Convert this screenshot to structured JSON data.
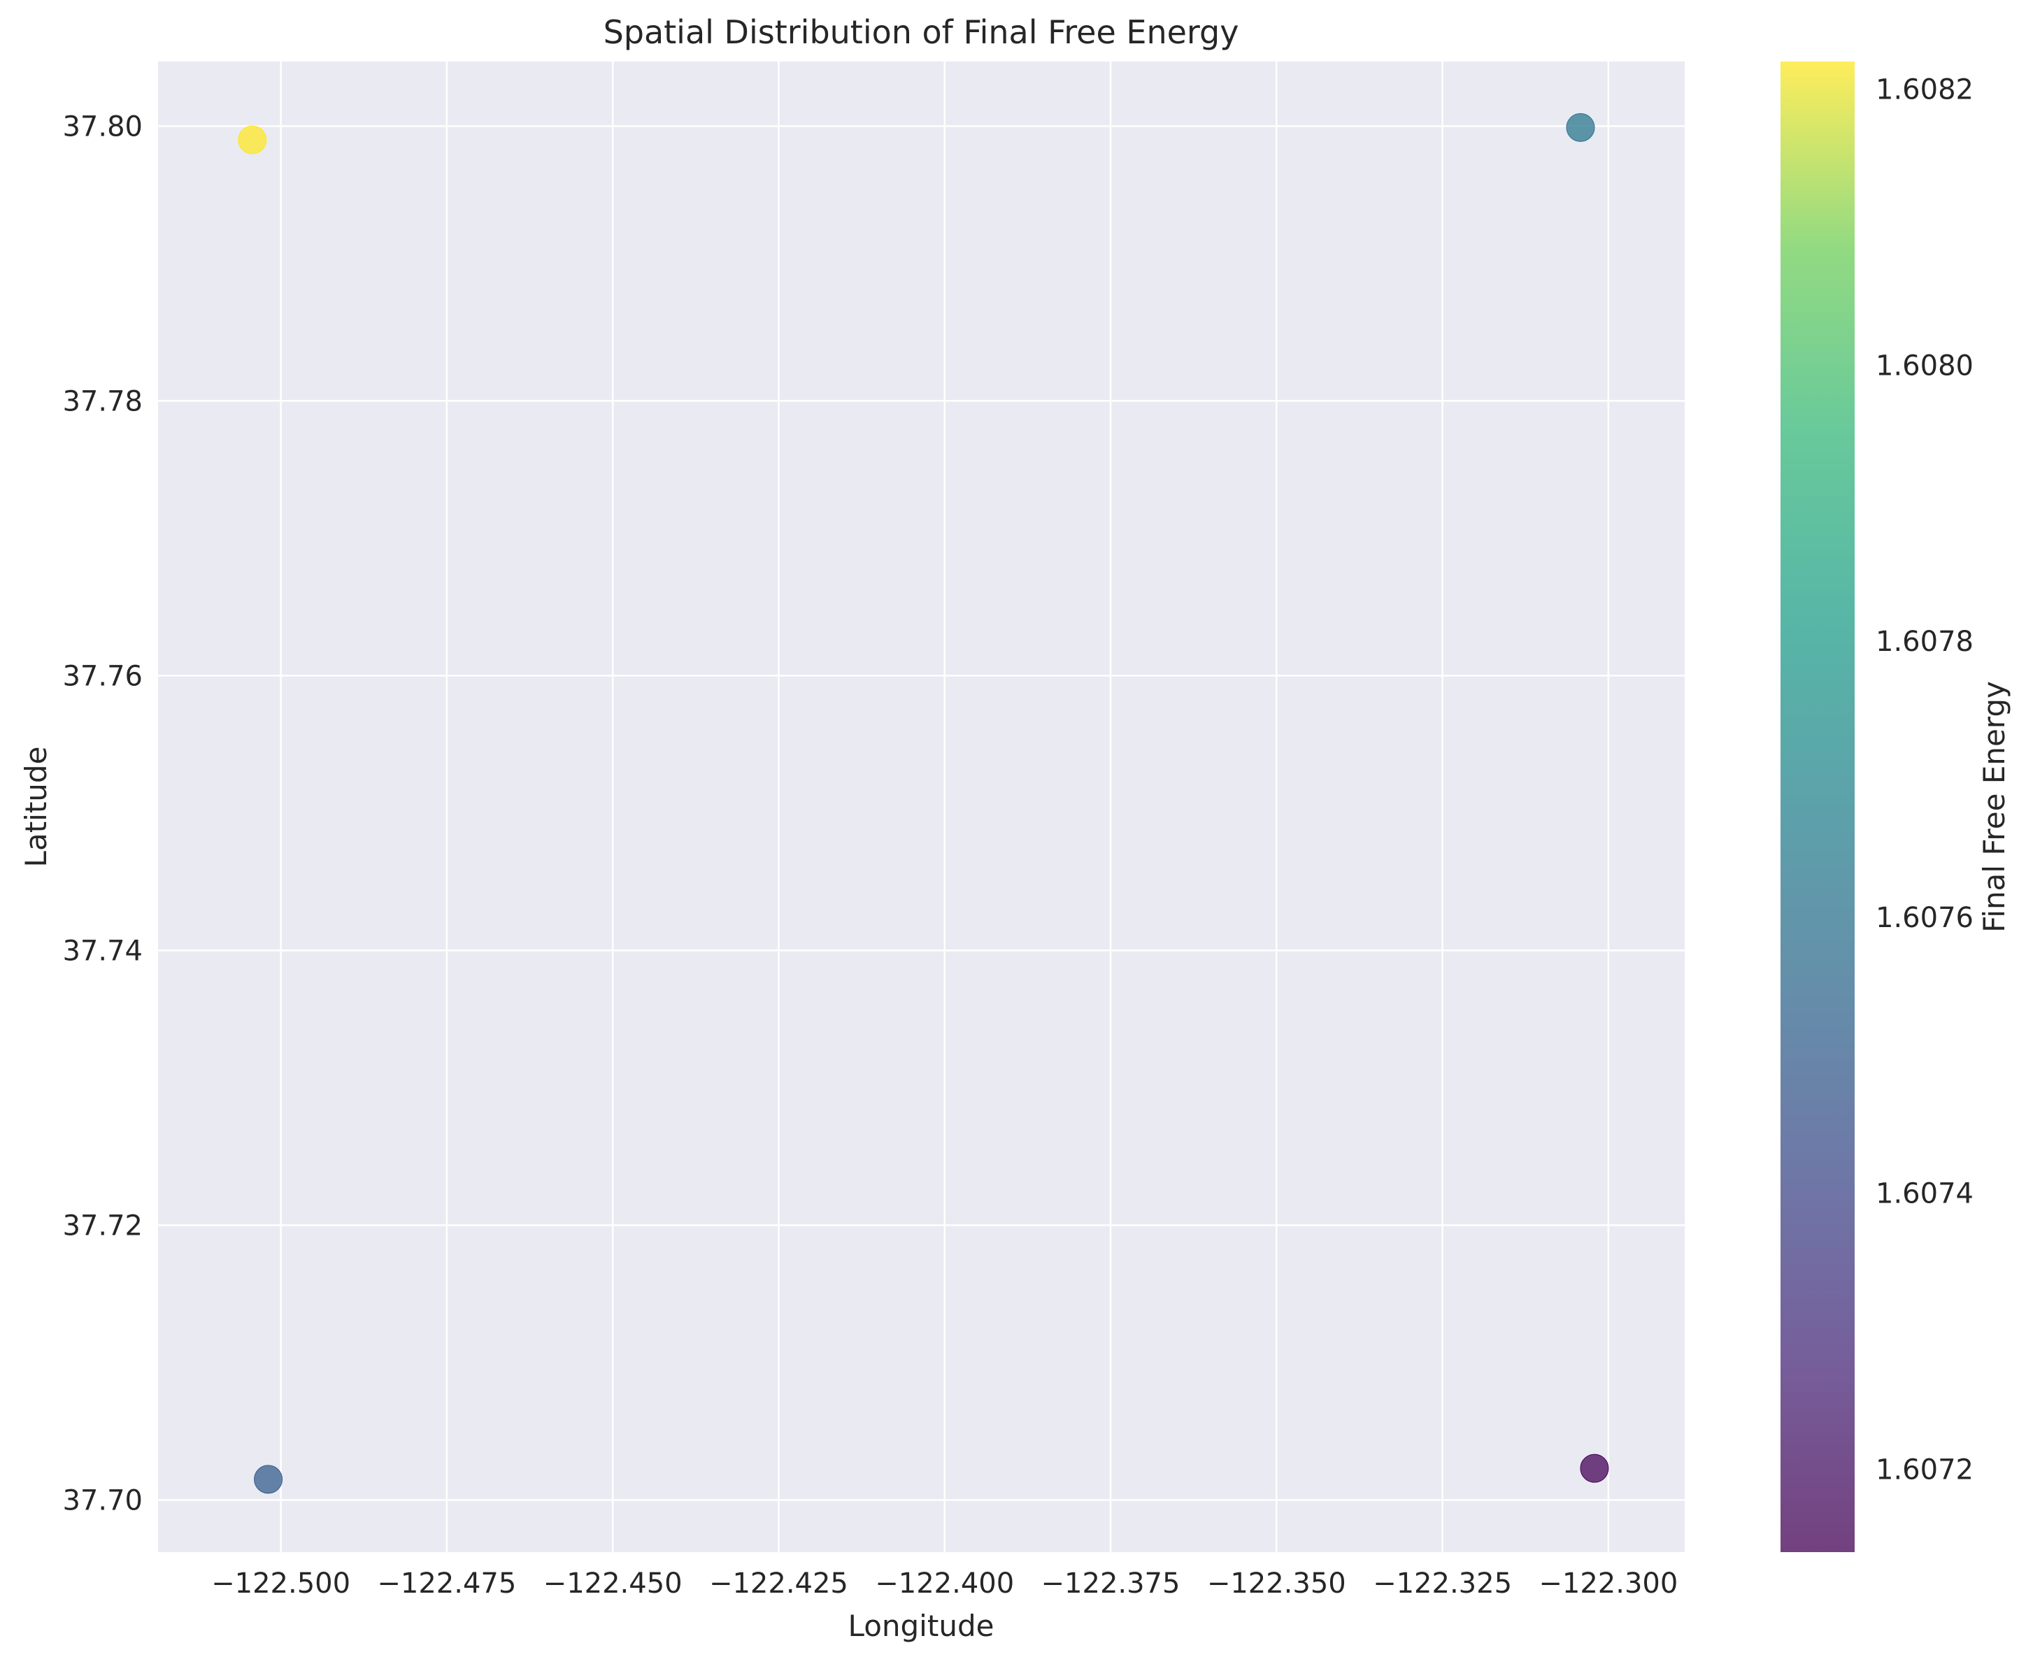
{
  "chart_data": {
    "type": "scatter",
    "title": "Spatial Distribution of Final Free Energy",
    "xlabel": "Longitude",
    "ylabel": "Latitude",
    "xlim": [
      -122.5185,
      -122.2885
    ],
    "ylim": [
      37.6962,
      37.8047
    ],
    "xticks": [
      -122.5,
      -122.475,
      -122.45,
      -122.425,
      -122.4,
      -122.375,
      -122.35,
      -122.325,
      -122.3
    ],
    "xtick_labels": [
      "−122.500",
      "−122.475",
      "−122.450",
      "−122.425",
      "−122.400",
      "−122.375",
      "−122.350",
      "−122.325",
      "−122.300"
    ],
    "yticks": [
      37.7,
      37.72,
      37.74,
      37.76,
      37.78,
      37.8
    ],
    "ytick_labels": [
      "37.70",
      "37.72",
      "37.74",
      "37.76",
      "37.78",
      "37.80"
    ],
    "grid": true,
    "points": [
      {
        "x": -122.5043,
        "y": 37.799,
        "value": 1.60822
      },
      {
        "x": -122.3042,
        "y": 37.7999,
        "value": 1.60762
      },
      {
        "x": -122.5019,
        "y": 37.7015,
        "value": 1.6075
      },
      {
        "x": -122.3021,
        "y": 37.7023,
        "value": 1.60715
      }
    ],
    "colorbar": {
      "label": "Final Free Energy",
      "min": 1.60714,
      "max": 1.60822,
      "ticks": [
        1.6072,
        1.6074,
        1.6076,
        1.6078,
        1.608,
        1.6082
      ],
      "tick_labels": [
        "1.6072",
        "1.6074",
        "1.6076",
        "1.6078",
        "1.6080",
        "1.6082"
      ],
      "colormap": "viridis"
    },
    "colors": {
      "plot_background": "#eaeaf2",
      "grid": "#ffffff",
      "text": "#262626"
    }
  }
}
